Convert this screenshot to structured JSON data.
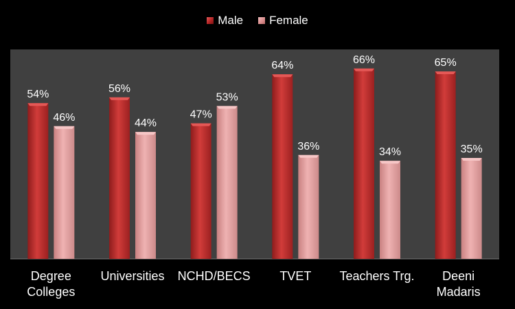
{
  "chart_data": {
    "type": "bar",
    "categories": [
      "Degree Colleges",
      "Universities",
      "NCHD/BECS",
      "TVET",
      "Teachers Trg.",
      "Deeni Madaris"
    ],
    "category_lines": [
      [
        "Degree",
        "Colleges"
      ],
      [
        "Universities"
      ],
      [
        "NCHD/BECS"
      ],
      [
        "TVET"
      ],
      [
        "Teachers Trg."
      ],
      [
        "Deeni",
        "Madaris"
      ]
    ],
    "series": [
      {
        "name": "Male",
        "values": [
          54,
          56,
          47,
          64,
          66,
          65
        ],
        "labels": [
          "54%",
          "56%",
          "47%",
          "64%",
          "66%",
          "65%"
        ],
        "color": "#c0302e"
      },
      {
        "name": "Female",
        "values": [
          46,
          44,
          53,
          36,
          34,
          35
        ],
        "labels": [
          "46%",
          "44%",
          "53%",
          "36%",
          "34%",
          "35%"
        ],
        "color": "#e8a0a0"
      }
    ],
    "ylim": [
      0,
      70
    ],
    "legend": "top-center",
    "plot_background": "#404040",
    "page_background": "#000000",
    "grid": false
  }
}
